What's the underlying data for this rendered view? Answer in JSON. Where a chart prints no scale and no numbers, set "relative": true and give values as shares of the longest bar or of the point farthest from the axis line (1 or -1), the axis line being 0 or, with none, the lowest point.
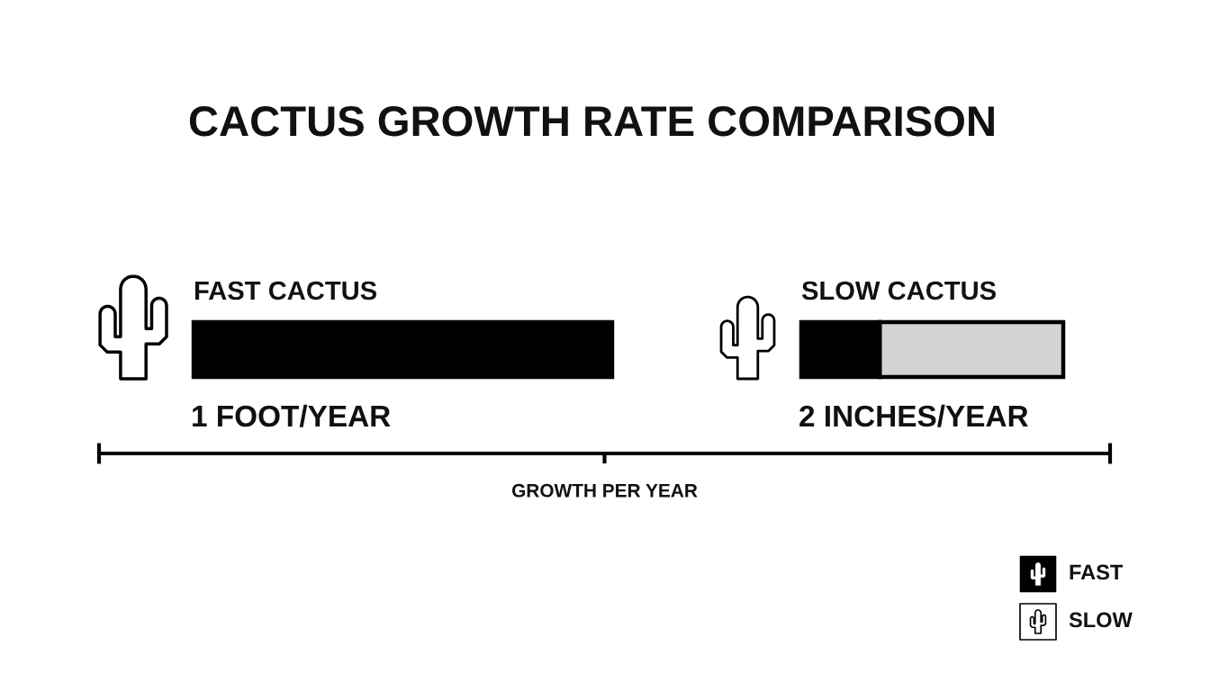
{
  "chart_data": [
    {
      "type": "bar",
      "orientation": "horizontal",
      "relative": true,
      "title": "CACTUS GROWTH RATE COMPARISON",
      "categories": [
        "FAST CACTUS"
      ],
      "series": [
        {
          "name": "FAST",
          "color": "#000000",
          "values": [
            1
          ]
        }
      ],
      "annotations": [
        "1 FOOT/YEAR"
      ]
    },
    {
      "type": "bar",
      "orientation": "horizontal",
      "stacked": true,
      "relative": true,
      "xlabel": "GROWTH PER YEAR",
      "categories": [
        "SLOW CACTUS"
      ],
      "series": [
        {
          "name": "SLOW",
          "color": "#000000",
          "values": [
            0.3
          ]
        },
        {
          "color": "#d3d3d3",
          "values": [
            0.7
          ]
        }
      ],
      "annotations": [
        "2 INCHES/YEAR"
      ],
      "legend": "bottom right"
    }
  ]
}
